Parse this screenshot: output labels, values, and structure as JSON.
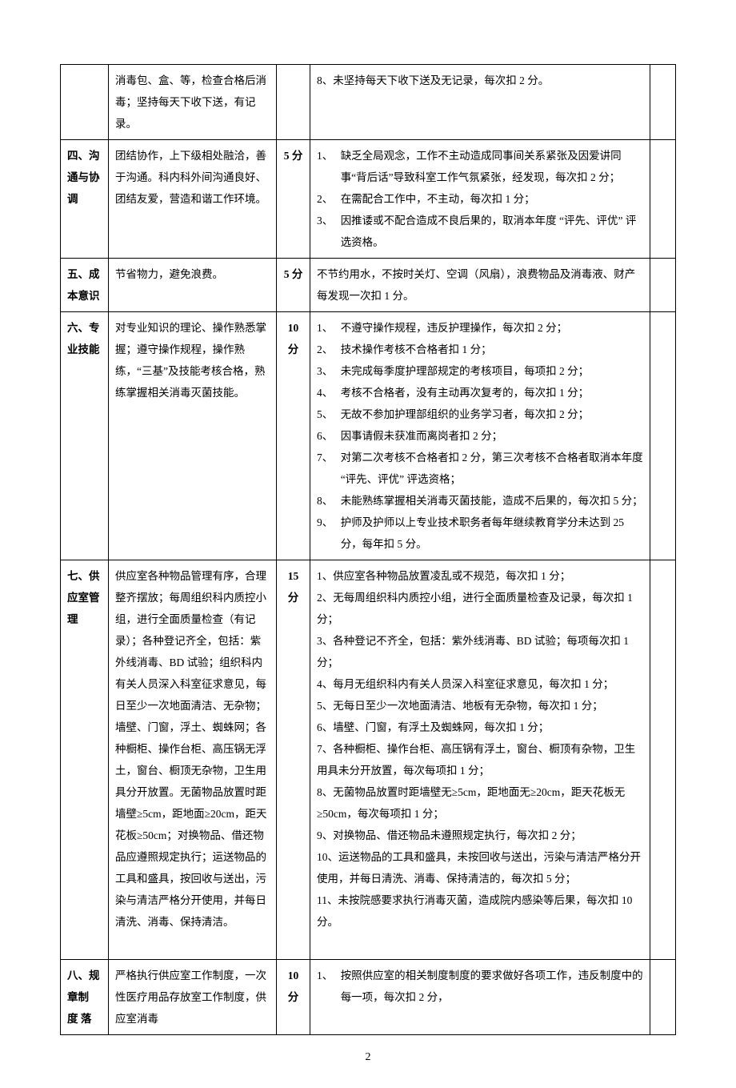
{
  "page_number": "2",
  "rows": [
    {
      "category": "",
      "description": "消毒包、盒、等，检查合格后消毒；坚持每天下收下送，有记录。",
      "score": "",
      "rules_plain": "8、未坚持每天下收下送及无记录，每次扣 2 分。"
    },
    {
      "category": "四、沟通与协调",
      "description": "团结协作，上下级相处融洽，善于沟通。科内科外间沟通良好、团结友爱，营造和谐工作环境。",
      "score": "5 分",
      "rules_items": [
        {
          "n": "1、",
          "t": "缺乏全局观念，工作不主动造成同事间关系紧张及因爱讲同事“背后话”导致科室工作气氛紧张，经发现，每次扣 2 分；"
        },
        {
          "n": "2、",
          "t": "在需配合工作中，不主动，每次扣 1 分；"
        },
        {
          "n": "3、",
          "t": "因推诿或不配合造成不良后果的，取消本年度 “评先、评优” 评选资格。"
        }
      ]
    },
    {
      "category": "五、成本意识",
      "description": "节省物力，避免浪费。",
      "score": "5 分",
      "rules_plain": "不节约用水，不按时关灯、空调（风扇），浪费物品及消毒液、财产每发现一次扣 1 分。"
    },
    {
      "category": "六、专业技能",
      "description": "对专业知识的理论、操作熟悉掌握；遵守操作规程，操作熟练，“三基”及技能考核合格，熟练掌握相关消毒灭菌技能。",
      "score": "10 分",
      "rules_items": [
        {
          "n": "1、",
          "t": "不遵守操作规程，违反护理操作，每次扣 2 分；"
        },
        {
          "n": "2、",
          "t": "技术操作考核不合格者扣 1 分；"
        },
        {
          "n": "3、",
          "t": "未完成每季度护理部规定的考核项目，每项扣 2 分；"
        },
        {
          "n": "4、",
          "t": "考核不合格者，没有主动再次复考的，每次扣 1 分；"
        },
        {
          "n": "5、",
          "t": "无故不参加护理部组织的业务学习者，每次扣 2 分；"
        },
        {
          "n": "6、",
          "t": "因事请假未获准而离岗者扣 2 分；"
        },
        {
          "n": "7、",
          "t": "对第二次考核不合格者扣 2 分，第三次考核不合格者取消本年度 “评先、评优” 评选资格；"
        },
        {
          "n": "8、",
          "t": "未能熟练掌握相关消毒灭菌技能，造成不后果的，每次扣 5 分；"
        },
        {
          "n": "9、",
          "t": "护师及护师以上专业技术职务者每年继续教育学分未达到 25 分，每年扣 5 分。"
        }
      ]
    },
    {
      "category": "七、供应室管理",
      "description": "供应室各种物品管理有序，合理整齐摆放；每周组织科内质控小组，进行全面质量检查（有记录）；各种登记齐全，包括：紫外线消毒、BD 试验；组织科内有关人员深入科室征求意见，每日至少一次地面清洁、无杂物；墙壁、门窗，浮土、蜘蛛网；各种橱柜、操作台柜、高压锅无浮土，窗台、橱顶无杂物，卫生用具分开放置。无菌物品放置时距墙壁≥5cm，距地面≥20cm，距天花板≥50cm；对换物品、借还物品应遵照规定执行；运送物品的工具和盛具，按回收与送出，污染与清洁严格分开使用，并每日清洗、消毒、保持清洁。",
      "score": "15 分",
      "rules_lines": [
        "1、供应室各种物品放置凌乱或不规范，每次扣 1 分；",
        "2、无每周组织科内质控小组，进行全面质量检查及记录，每次扣 1 分；",
        "3、各种登记不齐全，包括：紫外线消毒、BD 试验；每项每次扣 1 分；",
        "4、每月无组织科内有关人员深入科室征求意见，每次扣 1 分；",
        "5、无每日至少一次地面清洁、地板有无杂物，每次扣 1 分；",
        "6、墙壁、门窗，有浮土及蜘蛛网，每次扣 1 分；",
        "7、各种橱柜、操作台柜、高压锅有浮土，窗台、橱顶有杂物，卫生用具未分开放置，每次每项扣 1 分；",
        "8、无菌物品放置时距墙壁无≥5cm，距地面无≥20cm，距天花板无≥50cm，每次每项扣 1 分；",
        "9、对换物品、借还物品未遵照规定执行，每次扣 2 分；",
        "10、运送物品的工具和盛具，未按回收与送出，污染与清洁严格分开使用，并每日清洗、消毒、保持清洁的，每次扣 5 分；",
        "11、未按院感要求执行消毒灭菌，造成院内感染等后果，每次扣 10 分。"
      ],
      "rules_suffix_blank": true
    },
    {
      "category": "八、规章制 度 落",
      "description": "严格执行供应室工作制度，一次性医疗用品存放室工作制度，供应室消毒",
      "score": "10 分",
      "rules_items": [
        {
          "n": "1、",
          "t": "按照供应室的相关制度制度的要求做好各项工作，违反制度中的每一项，每次扣 2 分，"
        }
      ]
    }
  ]
}
